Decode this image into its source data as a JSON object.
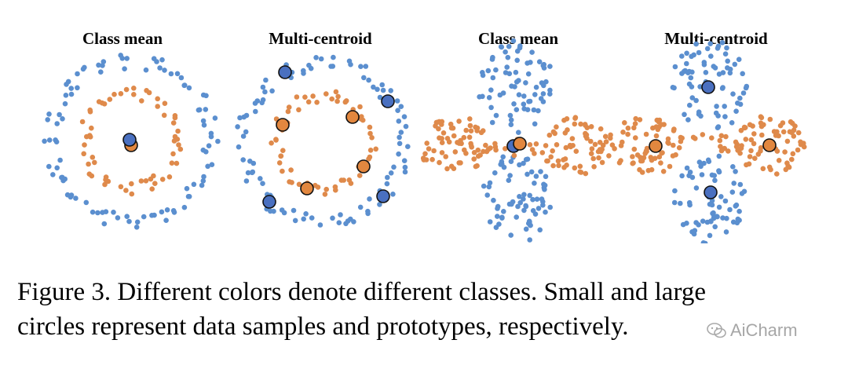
{
  "figure": {
    "panels": [
      {
        "title": "Class mean",
        "layout": "concentric-rings",
        "prototype_mode": "class-mean"
      },
      {
        "title": "Multi-centroid",
        "layout": "concentric-rings",
        "prototype_mode": "multi-centroid"
      },
      {
        "title": "Class mean",
        "layout": "cross",
        "prototype_mode": "class-mean"
      },
      {
        "title": "Multi-centroid",
        "layout": "cross",
        "prototype_mode": "multi-centroid"
      }
    ],
    "classes": [
      {
        "color": "#5b8fcf",
        "prototype_fill": "#4a70c0"
      },
      {
        "color": "#df8a4b",
        "prototype_fill": "#e2873f"
      }
    ]
  },
  "caption": {
    "line1": "Figure 3. Different colors denote different classes. Small and large",
    "line2": "circles represent data samples and prototypes, respectively."
  },
  "watermark": {
    "text": "AiCharm"
  }
}
